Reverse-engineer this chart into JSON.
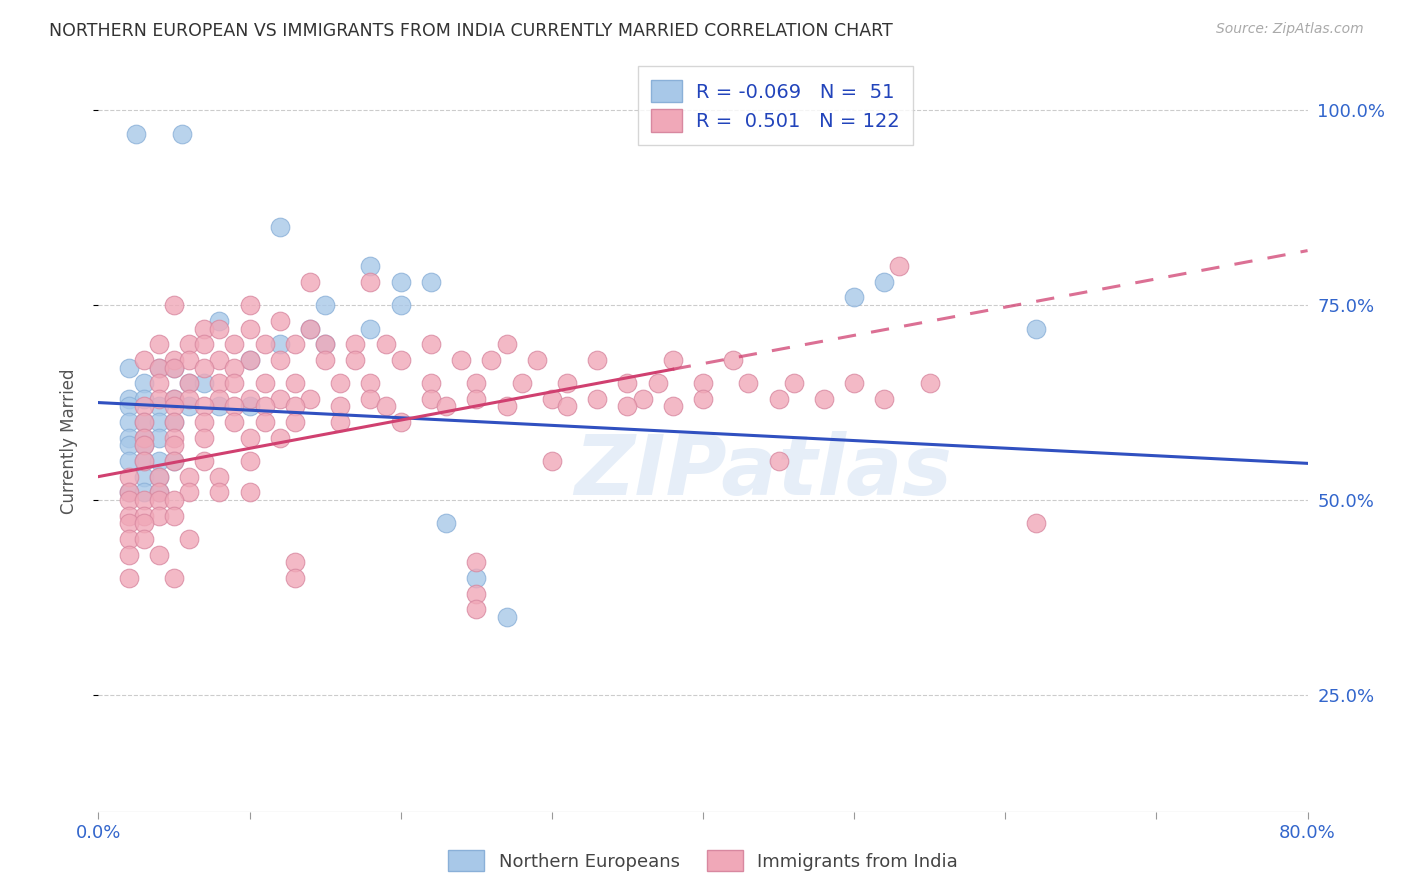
{
  "title": "NORTHERN EUROPEAN VS IMMIGRANTS FROM INDIA CURRENTLY MARRIED CORRELATION CHART",
  "source": "Source: ZipAtlas.com",
  "ylabel": "Currently Married",
  "x_min": 0.0,
  "x_max": 0.8,
  "y_min": 0.1,
  "y_max": 1.05,
  "blue_color": "#a8c8e8",
  "pink_color": "#f0a8b8",
  "blue_line_color": "#3050c0",
  "pink_line_color": "#d04070",
  "watermark": "ZIPatlas",
  "blue_R": -0.069,
  "pink_R": 0.501,
  "blue_scatter": [
    [
      0.025,
      0.97
    ],
    [
      0.055,
      0.97
    ],
    [
      0.12,
      0.85
    ],
    [
      0.18,
      0.8
    ],
    [
      0.2,
      0.78
    ],
    [
      0.22,
      0.78
    ],
    [
      0.52,
      0.78
    ],
    [
      0.5,
      0.76
    ],
    [
      0.15,
      0.75
    ],
    [
      0.2,
      0.75
    ],
    [
      0.08,
      0.73
    ],
    [
      0.14,
      0.72
    ],
    [
      0.18,
      0.72
    ],
    [
      0.12,
      0.7
    ],
    [
      0.15,
      0.7
    ],
    [
      0.1,
      0.68
    ],
    [
      0.02,
      0.67
    ],
    [
      0.04,
      0.67
    ],
    [
      0.05,
      0.67
    ],
    [
      0.03,
      0.65
    ],
    [
      0.06,
      0.65
    ],
    [
      0.07,
      0.65
    ],
    [
      0.02,
      0.63
    ],
    [
      0.03,
      0.63
    ],
    [
      0.05,
      0.63
    ],
    [
      0.02,
      0.62
    ],
    [
      0.04,
      0.62
    ],
    [
      0.06,
      0.62
    ],
    [
      0.08,
      0.62
    ],
    [
      0.1,
      0.62
    ],
    [
      0.02,
      0.6
    ],
    [
      0.03,
      0.6
    ],
    [
      0.04,
      0.6
    ],
    [
      0.05,
      0.6
    ],
    [
      0.02,
      0.58
    ],
    [
      0.03,
      0.58
    ],
    [
      0.04,
      0.58
    ],
    [
      0.02,
      0.57
    ],
    [
      0.03,
      0.57
    ],
    [
      0.02,
      0.55
    ],
    [
      0.03,
      0.55
    ],
    [
      0.04,
      0.55
    ],
    [
      0.05,
      0.55
    ],
    [
      0.03,
      0.53
    ],
    [
      0.04,
      0.53
    ],
    [
      0.02,
      0.51
    ],
    [
      0.03,
      0.51
    ],
    [
      0.04,
      0.51
    ],
    [
      0.23,
      0.47
    ],
    [
      0.25,
      0.4
    ],
    [
      0.27,
      0.35
    ],
    [
      0.62,
      0.72
    ]
  ],
  "pink_scatter": [
    [
      0.53,
      0.8
    ],
    [
      0.14,
      0.78
    ],
    [
      0.18,
      0.78
    ],
    [
      0.05,
      0.75
    ],
    [
      0.1,
      0.75
    ],
    [
      0.12,
      0.73
    ],
    [
      0.07,
      0.72
    ],
    [
      0.08,
      0.72
    ],
    [
      0.1,
      0.72
    ],
    [
      0.14,
      0.72
    ],
    [
      0.04,
      0.7
    ],
    [
      0.06,
      0.7
    ],
    [
      0.07,
      0.7
    ],
    [
      0.09,
      0.7
    ],
    [
      0.11,
      0.7
    ],
    [
      0.13,
      0.7
    ],
    [
      0.15,
      0.7
    ],
    [
      0.17,
      0.7
    ],
    [
      0.19,
      0.7
    ],
    [
      0.22,
      0.7
    ],
    [
      0.27,
      0.7
    ],
    [
      0.03,
      0.68
    ],
    [
      0.05,
      0.68
    ],
    [
      0.06,
      0.68
    ],
    [
      0.08,
      0.68
    ],
    [
      0.1,
      0.68
    ],
    [
      0.12,
      0.68
    ],
    [
      0.15,
      0.68
    ],
    [
      0.17,
      0.68
    ],
    [
      0.2,
      0.68
    ],
    [
      0.24,
      0.68
    ],
    [
      0.26,
      0.68
    ],
    [
      0.29,
      0.68
    ],
    [
      0.33,
      0.68
    ],
    [
      0.38,
      0.68
    ],
    [
      0.42,
      0.68
    ],
    [
      0.04,
      0.67
    ],
    [
      0.05,
      0.67
    ],
    [
      0.07,
      0.67
    ],
    [
      0.09,
      0.67
    ],
    [
      0.04,
      0.65
    ],
    [
      0.06,
      0.65
    ],
    [
      0.08,
      0.65
    ],
    [
      0.09,
      0.65
    ],
    [
      0.11,
      0.65
    ],
    [
      0.13,
      0.65
    ],
    [
      0.16,
      0.65
    ],
    [
      0.18,
      0.65
    ],
    [
      0.22,
      0.65
    ],
    [
      0.25,
      0.65
    ],
    [
      0.28,
      0.65
    ],
    [
      0.31,
      0.65
    ],
    [
      0.35,
      0.65
    ],
    [
      0.37,
      0.65
    ],
    [
      0.4,
      0.65
    ],
    [
      0.43,
      0.65
    ],
    [
      0.46,
      0.65
    ],
    [
      0.5,
      0.65
    ],
    [
      0.55,
      0.65
    ],
    [
      0.04,
      0.63
    ],
    [
      0.05,
      0.63
    ],
    [
      0.06,
      0.63
    ],
    [
      0.08,
      0.63
    ],
    [
      0.1,
      0.63
    ],
    [
      0.12,
      0.63
    ],
    [
      0.14,
      0.63
    ],
    [
      0.18,
      0.63
    ],
    [
      0.22,
      0.63
    ],
    [
      0.25,
      0.63
    ],
    [
      0.3,
      0.63
    ],
    [
      0.33,
      0.63
    ],
    [
      0.36,
      0.63
    ],
    [
      0.4,
      0.63
    ],
    [
      0.45,
      0.63
    ],
    [
      0.48,
      0.63
    ],
    [
      0.52,
      0.63
    ],
    [
      0.03,
      0.62
    ],
    [
      0.05,
      0.62
    ],
    [
      0.07,
      0.62
    ],
    [
      0.09,
      0.62
    ],
    [
      0.11,
      0.62
    ],
    [
      0.13,
      0.62
    ],
    [
      0.16,
      0.62
    ],
    [
      0.19,
      0.62
    ],
    [
      0.23,
      0.62
    ],
    [
      0.27,
      0.62
    ],
    [
      0.31,
      0.62
    ],
    [
      0.35,
      0.62
    ],
    [
      0.38,
      0.62
    ],
    [
      0.03,
      0.6
    ],
    [
      0.05,
      0.6
    ],
    [
      0.07,
      0.6
    ],
    [
      0.09,
      0.6
    ],
    [
      0.11,
      0.6
    ],
    [
      0.13,
      0.6
    ],
    [
      0.16,
      0.6
    ],
    [
      0.2,
      0.6
    ],
    [
      0.03,
      0.58
    ],
    [
      0.05,
      0.58
    ],
    [
      0.07,
      0.58
    ],
    [
      0.1,
      0.58
    ],
    [
      0.12,
      0.58
    ],
    [
      0.03,
      0.57
    ],
    [
      0.05,
      0.57
    ],
    [
      0.03,
      0.55
    ],
    [
      0.05,
      0.55
    ],
    [
      0.07,
      0.55
    ],
    [
      0.1,
      0.55
    ],
    [
      0.3,
      0.55
    ],
    [
      0.45,
      0.55
    ],
    [
      0.02,
      0.53
    ],
    [
      0.04,
      0.53
    ],
    [
      0.06,
      0.53
    ],
    [
      0.08,
      0.53
    ],
    [
      0.02,
      0.51
    ],
    [
      0.04,
      0.51
    ],
    [
      0.06,
      0.51
    ],
    [
      0.08,
      0.51
    ],
    [
      0.1,
      0.51
    ],
    [
      0.02,
      0.5
    ],
    [
      0.03,
      0.5
    ],
    [
      0.04,
      0.5
    ],
    [
      0.05,
      0.5
    ],
    [
      0.02,
      0.48
    ],
    [
      0.03,
      0.48
    ],
    [
      0.04,
      0.48
    ],
    [
      0.05,
      0.48
    ],
    [
      0.02,
      0.47
    ],
    [
      0.03,
      0.47
    ],
    [
      0.02,
      0.45
    ],
    [
      0.03,
      0.45
    ],
    [
      0.06,
      0.45
    ],
    [
      0.02,
      0.43
    ],
    [
      0.04,
      0.43
    ],
    [
      0.13,
      0.42
    ],
    [
      0.25,
      0.42
    ],
    [
      0.02,
      0.4
    ],
    [
      0.05,
      0.4
    ],
    [
      0.13,
      0.4
    ],
    [
      0.25,
      0.38
    ],
    [
      0.25,
      0.36
    ],
    [
      0.62,
      0.47
    ]
  ]
}
